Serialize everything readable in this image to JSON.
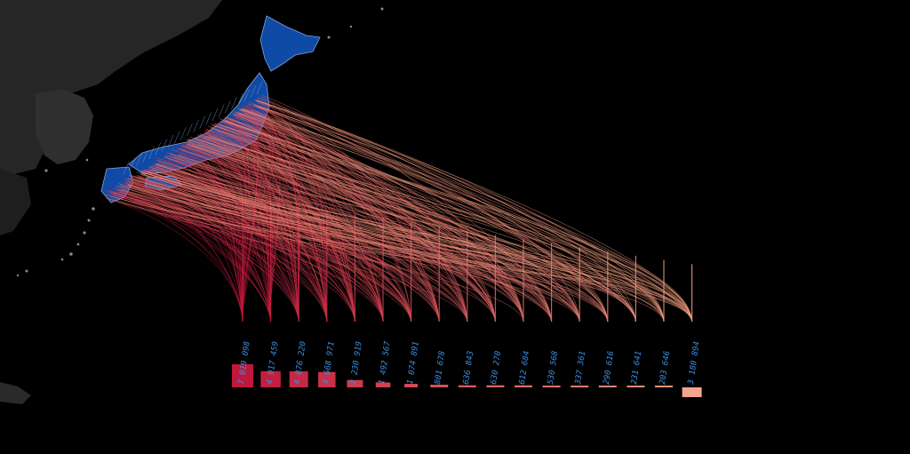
{
  "colors": {
    "background": "#000000",
    "japan_fill": "#0f4aa6",
    "japan_outline": "#7fa6d8",
    "neighbor_land": "#2b2b2b",
    "flow_start": "#c0183c",
    "flow_end": "#f29d80",
    "label": "#3d8fe0"
  },
  "destinations": [
    {
      "label": "7 019 098",
      "value": 7019098,
      "flows": 34,
      "spread": 0.1
    },
    {
      "label": "4 917 459",
      "value": 4917459,
      "flows": 30,
      "spread": 0.18
    },
    {
      "label": "4 876 220",
      "value": 4876220,
      "flows": 30,
      "spread": 0.24
    },
    {
      "label": "4 668 971",
      "value": 4668971,
      "flows": 30,
      "spread": 0.28
    },
    {
      "label": "2 230 919",
      "value": 2230919,
      "flows": 26,
      "spread": 0.34
    },
    {
      "label": "1 492 567",
      "value": 1492567,
      "flows": 24,
      "spread": 0.4
    },
    {
      "label": "1 074 891",
      "value": 1074891,
      "flows": 22,
      "spread": 0.46
    },
    {
      "label": "801 678",
      "value": 801678,
      "flows": 22,
      "spread": 0.52
    },
    {
      "label": "636 843",
      "value": 636843,
      "flows": 20,
      "spread": 0.58
    },
    {
      "label": "630 270",
      "value": 630270,
      "flows": 20,
      "spread": 0.62
    },
    {
      "label": "612 684",
      "value": 612684,
      "flows": 20,
      "spread": 0.66
    },
    {
      "label": "530 568",
      "value": 530568,
      "flows": 18,
      "spread": 0.7
    },
    {
      "label": "337 361",
      "value": 337361,
      "flows": 18,
      "spread": 0.74
    },
    {
      "label": "290 616",
      "value": 290616,
      "flows": 16,
      "spread": 0.78
    },
    {
      "label": "231 641",
      "value": 231641,
      "flows": 16,
      "spread": 0.82
    },
    {
      "label": "203 646",
      "value": 203646,
      "flows": 16,
      "spread": 0.86
    },
    {
      "label": "3 180 894",
      "value": 3180894,
      "flows": 26,
      "spread": 0.95
    }
  ]
}
